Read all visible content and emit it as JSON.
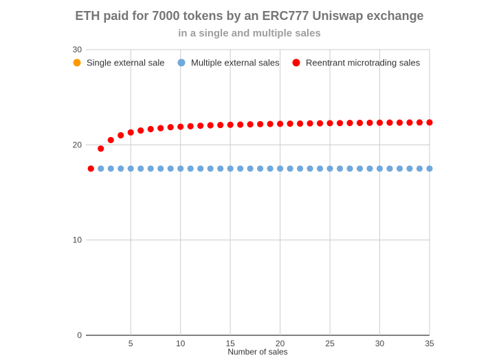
{
  "chart_data": {
    "type": "scatter",
    "title": "ETH paid for 7000 tokens by an ERC777 Uniswap exchange",
    "subtitle": "in a single and multiple sales",
    "xlabel": "Number of sales",
    "ylabel": "",
    "xlim": [
      0.5,
      35
    ],
    "ylim": [
      0,
      30
    ],
    "x_ticks": [
      5,
      10,
      15,
      20,
      25,
      30,
      35
    ],
    "y_ticks": [
      0,
      10,
      20,
      30
    ],
    "grid": true,
    "legend_position": "top",
    "series": [
      {
        "name": "Single external sale",
        "color": "#ff9900",
        "points": [
          {
            "x": 1,
            "y": 17.5
          }
        ]
      },
      {
        "name": "Multiple external sales",
        "color": "#6fa8dc",
        "points": [
          {
            "x": 1,
            "y": 17.5
          },
          {
            "x": 2,
            "y": 17.5
          },
          {
            "x": 3,
            "y": 17.5
          },
          {
            "x": 4,
            "y": 17.5
          },
          {
            "x": 5,
            "y": 17.5
          },
          {
            "x": 6,
            "y": 17.5
          },
          {
            "x": 7,
            "y": 17.5
          },
          {
            "x": 8,
            "y": 17.5
          },
          {
            "x": 9,
            "y": 17.5
          },
          {
            "x": 10,
            "y": 17.5
          },
          {
            "x": 11,
            "y": 17.5
          },
          {
            "x": 12,
            "y": 17.5
          },
          {
            "x": 13,
            "y": 17.5
          },
          {
            "x": 14,
            "y": 17.5
          },
          {
            "x": 15,
            "y": 17.5
          },
          {
            "x": 16,
            "y": 17.5
          },
          {
            "x": 17,
            "y": 17.5
          },
          {
            "x": 18,
            "y": 17.5
          },
          {
            "x": 19,
            "y": 17.5
          },
          {
            "x": 20,
            "y": 17.5
          },
          {
            "x": 21,
            "y": 17.5
          },
          {
            "x": 22,
            "y": 17.5
          },
          {
            "x": 23,
            "y": 17.5
          },
          {
            "x": 24,
            "y": 17.5
          },
          {
            "x": 25,
            "y": 17.5
          },
          {
            "x": 26,
            "y": 17.5
          },
          {
            "x": 27,
            "y": 17.5
          },
          {
            "x": 28,
            "y": 17.5
          },
          {
            "x": 29,
            "y": 17.5
          },
          {
            "x": 30,
            "y": 17.5
          },
          {
            "x": 31,
            "y": 17.5
          },
          {
            "x": 32,
            "y": 17.5
          },
          {
            "x": 33,
            "y": 17.5
          },
          {
            "x": 34,
            "y": 17.5
          },
          {
            "x": 35,
            "y": 17.5
          }
        ]
      },
      {
        "name": "Reentrant microtrading sales",
        "color": "#ff0000",
        "points": [
          {
            "x": 1,
            "y": 17.5
          },
          {
            "x": 2,
            "y": 19.6
          },
          {
            "x": 3,
            "y": 20.5
          },
          {
            "x": 4,
            "y": 21.0
          },
          {
            "x": 5,
            "y": 21.3
          },
          {
            "x": 6,
            "y": 21.5
          },
          {
            "x": 7,
            "y": 21.65
          },
          {
            "x": 8,
            "y": 21.75
          },
          {
            "x": 9,
            "y": 21.85
          },
          {
            "x": 10,
            "y": 21.9
          },
          {
            "x": 11,
            "y": 21.95
          },
          {
            "x": 12,
            "y": 22.0
          },
          {
            "x": 13,
            "y": 22.05
          },
          {
            "x": 14,
            "y": 22.08
          },
          {
            "x": 15,
            "y": 22.1
          },
          {
            "x": 16,
            "y": 22.12
          },
          {
            "x": 17,
            "y": 22.15
          },
          {
            "x": 18,
            "y": 22.17
          },
          {
            "x": 19,
            "y": 22.19
          },
          {
            "x": 20,
            "y": 22.2
          },
          {
            "x": 21,
            "y": 22.22
          },
          {
            "x": 22,
            "y": 22.23
          },
          {
            "x": 23,
            "y": 22.25
          },
          {
            "x": 24,
            "y": 22.26
          },
          {
            "x": 25,
            "y": 22.27
          },
          {
            "x": 26,
            "y": 22.28
          },
          {
            "x": 27,
            "y": 22.29
          },
          {
            "x": 28,
            "y": 22.3
          },
          {
            "x": 29,
            "y": 22.31
          },
          {
            "x": 30,
            "y": 22.32
          },
          {
            "x": 31,
            "y": 22.33
          },
          {
            "x": 32,
            "y": 22.33
          },
          {
            "x": 33,
            "y": 22.34
          },
          {
            "x": 34,
            "y": 22.35
          },
          {
            "x": 35,
            "y": 22.35
          }
        ]
      }
    ]
  }
}
